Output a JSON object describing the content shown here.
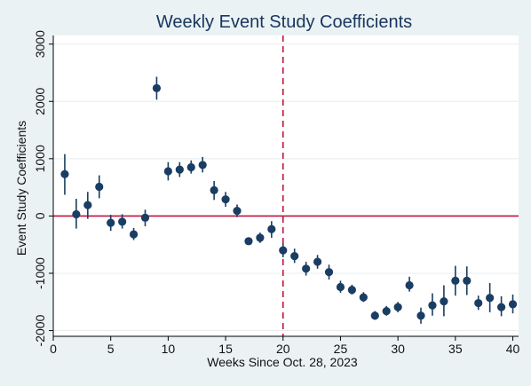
{
  "chart_data": {
    "type": "scatter",
    "title": "Weekly Event Study Coefficients",
    "xlabel": "Weeks Since Oct. 28, 2023",
    "ylabel": "Event Study Coefficients",
    "xlim": [
      0,
      40.5
    ],
    "ylim": [
      -2100,
      3150
    ],
    "xticks": [
      0,
      5,
      10,
      15,
      20,
      25,
      30,
      35,
      40
    ],
    "yticks": [
      -2000,
      -1000,
      0,
      1000,
      2000,
      3000
    ],
    "grid": "horizontal",
    "reference_lines": {
      "horizontal_y": 0,
      "vertical_x": 20
    },
    "colors": {
      "background": "#eaf2f3",
      "plot_area": "#ffffff",
      "marker": "#1a3d63",
      "ci": "#1a3d63",
      "hline": "#c0143c",
      "vline": "#c0143c",
      "title": "#1a3660",
      "grid": "#e8ecef"
    },
    "points": [
      {
        "x": 1,
        "y": 730,
        "lo": 370,
        "hi": 1080
      },
      {
        "x": 2,
        "y": 30,
        "lo": -220,
        "hi": 300
      },
      {
        "x": 3,
        "y": 190,
        "lo": -50,
        "hi": 420
      },
      {
        "x": 4,
        "y": 510,
        "lo": 310,
        "hi": 710
      },
      {
        "x": 5,
        "y": -120,
        "lo": -260,
        "hi": 20
      },
      {
        "x": 6,
        "y": -100,
        "lo": -220,
        "hi": 30
      },
      {
        "x": 7,
        "y": -320,
        "lo": -420,
        "hi": -210
      },
      {
        "x": 8,
        "y": -30,
        "lo": -180,
        "hi": 110
      },
      {
        "x": 9,
        "y": 2230,
        "lo": 2030,
        "hi": 2430
      },
      {
        "x": 10,
        "y": 780,
        "lo": 620,
        "hi": 940
      },
      {
        "x": 11,
        "y": 810,
        "lo": 680,
        "hi": 940
      },
      {
        "x": 12,
        "y": 850,
        "lo": 740,
        "hi": 970
      },
      {
        "x": 13,
        "y": 890,
        "lo": 760,
        "hi": 1030
      },
      {
        "x": 14,
        "y": 450,
        "lo": 280,
        "hi": 610
      },
      {
        "x": 15,
        "y": 290,
        "lo": 160,
        "hi": 420
      },
      {
        "x": 16,
        "y": 90,
        "lo": -20,
        "hi": 200
      },
      {
        "x": 17,
        "y": -440,
        "lo": -500,
        "hi": -390
      },
      {
        "x": 18,
        "y": -380,
        "lo": -470,
        "hi": -290
      },
      {
        "x": 19,
        "y": -230,
        "lo": -380,
        "hi": -90
      },
      {
        "x": 20,
        "y": -600,
        "lo": -720,
        "hi": -480
      },
      {
        "x": 21,
        "y": -700,
        "lo": -820,
        "hi": -570
      },
      {
        "x": 22,
        "y": -920,
        "lo": -1040,
        "hi": -800
      },
      {
        "x": 23,
        "y": -800,
        "lo": -920,
        "hi": -680
      },
      {
        "x": 24,
        "y": -980,
        "lo": -1110,
        "hi": -850
      },
      {
        "x": 25,
        "y": -1240,
        "lo": -1340,
        "hi": -1130
      },
      {
        "x": 26,
        "y": -1290,
        "lo": -1370,
        "hi": -1200
      },
      {
        "x": 27,
        "y": -1420,
        "lo": -1500,
        "hi": -1330
      },
      {
        "x": 28,
        "y": -1740,
        "lo": -1810,
        "hi": -1660
      },
      {
        "x": 29,
        "y": -1660,
        "lo": -1740,
        "hi": -1570
      },
      {
        "x": 30,
        "y": -1590,
        "lo": -1680,
        "hi": -1500
      },
      {
        "x": 31,
        "y": -1210,
        "lo": -1320,
        "hi": -1060
      },
      {
        "x": 32,
        "y": -1740,
        "lo": -1880,
        "hi": -1600
      },
      {
        "x": 33,
        "y": -1560,
        "lo": -1740,
        "hi": -1350
      },
      {
        "x": 34,
        "y": -1490,
        "lo": -1750,
        "hi": -1210
      },
      {
        "x": 35,
        "y": -1130,
        "lo": -1390,
        "hi": -870
      },
      {
        "x": 36,
        "y": -1130,
        "lo": -1380,
        "hi": -880
      },
      {
        "x": 37,
        "y": -1520,
        "lo": -1640,
        "hi": -1390
      },
      {
        "x": 38,
        "y": -1430,
        "lo": -1680,
        "hi": -1170
      },
      {
        "x": 39,
        "y": -1590,
        "lo": -1750,
        "hi": -1400
      },
      {
        "x": 40,
        "y": -1540,
        "lo": -1700,
        "hi": -1370
      }
    ]
  }
}
